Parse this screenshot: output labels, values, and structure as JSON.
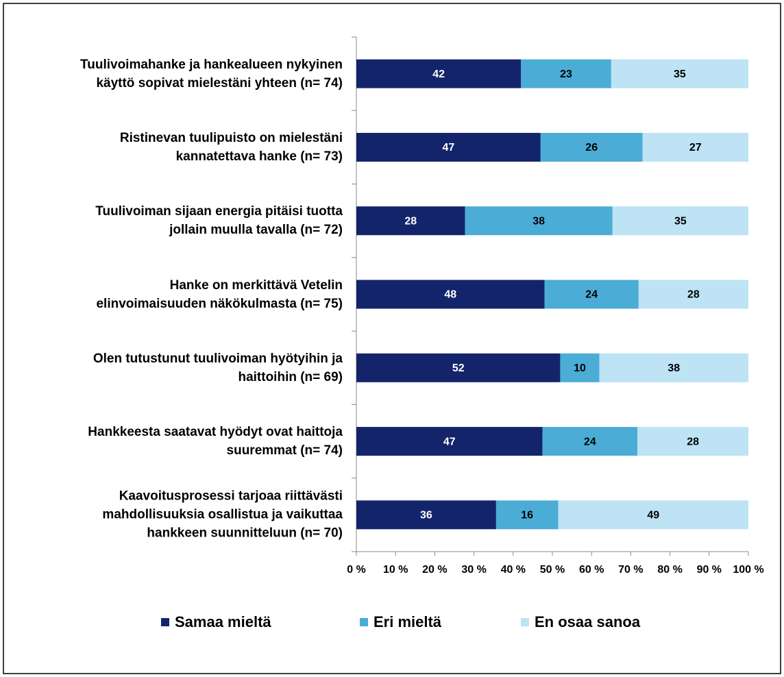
{
  "chart_data": {
    "type": "bar",
    "orientation": "horizontal",
    "stacking": "percent",
    "categories": [
      "Tuulivoimahanke ja hankealueen nykyinen\nkäyttö sopivat mielestäni yhteen (n= 74)",
      "Ristinevan tuulipuisto on mielestäni\nkannatettava hanke (n= 73)",
      "Tuulivoiman sijaan energia pitäisi tuotta\njollain muulla tavalla (n= 72)",
      "Hanke on merkittävä Vetelin\nelinvoimaisuuden näkökulmasta (n= 75)",
      "Olen tutustunut tuulivoiman hyötyihin ja\nhaittoihin (n= 69)",
      "Hankkeesta saatavat hyödyt ovat haittoja\nsuuremmat (n= 74)",
      "Kaavoitusprosessi tarjoaa riittävästi\nmahdollisuuksia osallistua ja vaikuttaa\nhankkeen suunnitteluun (n= 70)"
    ],
    "series": [
      {
        "name": "Samaa mieltä",
        "color": "#14246b",
        "values": [
          42,
          47,
          28,
          48,
          52,
          47,
          36
        ]
      },
      {
        "name": "Eri mieltä",
        "color": "#4bacd6",
        "values": [
          23,
          26,
          38,
          24,
          10,
          24,
          16
        ]
      },
      {
        "name": "En osaa sanoa",
        "color": "#bde3f5",
        "values": [
          35,
          27,
          35,
          28,
          38,
          28,
          49
        ]
      }
    ],
    "xlim": [
      0,
      100
    ],
    "xticks": [
      {
        "value": 0,
        "label": "0 %"
      },
      {
        "value": 10,
        "label": "10 %"
      },
      {
        "value": 20,
        "label": "20 %"
      },
      {
        "value": 30,
        "label": "30 %"
      },
      {
        "value": 40,
        "label": "40 %"
      },
      {
        "value": 50,
        "label": "50 %"
      },
      {
        "value": 60,
        "label": "60 %"
      },
      {
        "value": 70,
        "label": "70 %"
      },
      {
        "value": 80,
        "label": "80 %"
      },
      {
        "value": 90,
        "label": "90 %"
      },
      {
        "value": 100,
        "label": "100 %"
      }
    ],
    "legend": "bottom"
  }
}
